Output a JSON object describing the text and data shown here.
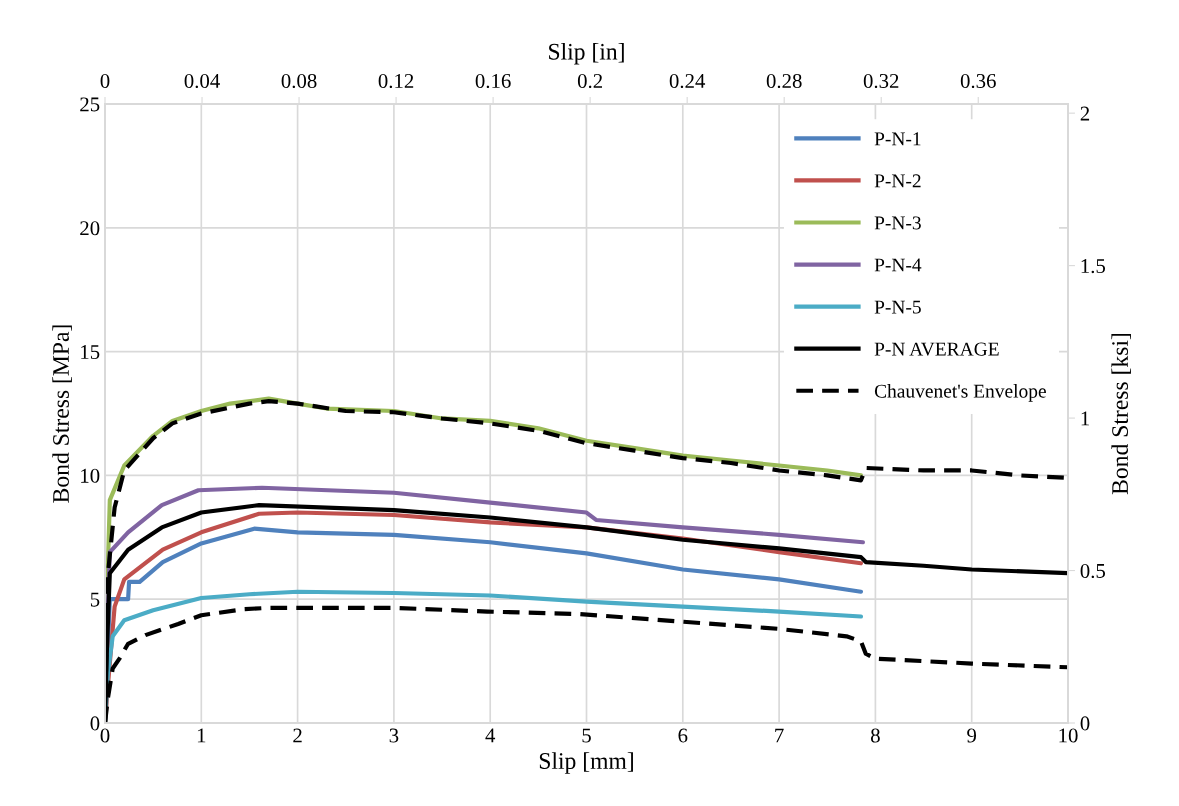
{
  "chart_data": {
    "type": "line",
    "xlabel": "Slip [mm]",
    "ylabel": "Bond Stress [MPa]",
    "y2label": "Bond Stress [ksi]",
    "x2label": "Slip [in]",
    "xlim": [
      0,
      10
    ],
    "xticks": [
      0,
      1,
      2,
      3,
      4,
      5,
      6,
      7,
      8,
      9,
      10
    ],
    "ylim": [
      0,
      25
    ],
    "yticks": [
      0,
      5,
      10,
      15,
      20,
      25
    ],
    "y2lim": [
      0,
      2.03
    ],
    "y2ticks": [
      0,
      0.5,
      1,
      1.5,
      2
    ],
    "x2lim": [
      0,
      0.397
    ],
    "x2ticks": [
      0,
      0.04,
      0.08,
      0.12,
      0.16,
      0.2,
      0.24,
      0.28,
      0.32,
      0.36
    ],
    "grid": true,
    "legend": "top right",
    "line_style": "solid",
    "series": [
      {
        "name": "P-N-1",
        "color": "#4f81bd",
        "x": [
          0,
          0.03,
          0.05,
          0.24,
          0.25,
          0.36,
          0.6,
          1.0,
          1.55,
          2.0,
          3.0,
          4.0,
          5.0,
          6.0,
          7.0,
          7.85
        ],
        "values": [
          0,
          3,
          5.0,
          5.0,
          5.7,
          5.7,
          6.5,
          7.25,
          7.85,
          7.7,
          7.6,
          7.3,
          6.85,
          6.2,
          5.8,
          5.3
        ]
      },
      {
        "name": "P-N-2",
        "color": "#c0504d",
        "x": [
          0,
          0.03,
          0.1,
          0.2,
          0.6,
          1.0,
          1.6,
          2.0,
          3.0,
          4.0,
          5.0,
          6.0,
          7.0,
          7.85
        ],
        "values": [
          0,
          1.5,
          4.7,
          5.8,
          7.0,
          7.7,
          8.45,
          8.5,
          8.4,
          8.1,
          7.9,
          7.45,
          6.9,
          6.45
        ]
      },
      {
        "name": "P-N-3",
        "color": "#9bbb59",
        "x": [
          0,
          0.02,
          0.05,
          0.2,
          0.5,
          0.7,
          1.0,
          1.3,
          1.7,
          2.0,
          2.3,
          3.0,
          3.5,
          4.0,
          4.5,
          5.0,
          5.5,
          6.0,
          6.5,
          7.0,
          7.5,
          7.85
        ],
        "values": [
          0,
          5,
          9,
          10.4,
          11.6,
          12.2,
          12.6,
          12.9,
          13.1,
          12.9,
          12.7,
          12.6,
          12.3,
          12.2,
          11.9,
          11.4,
          11.1,
          10.8,
          10.6,
          10.4,
          10.2,
          10.0
        ]
      },
      {
        "name": "P-N-4",
        "color": "#8064a2",
        "x": [
          0,
          0.02,
          0.05,
          0.24,
          0.59,
          0.97,
          1.63,
          3.0,
          4.0,
          5.0,
          5.1,
          6.0,
          7.0,
          7.87
        ],
        "values": [
          0,
          3.5,
          6.9,
          7.7,
          8.8,
          9.4,
          9.5,
          9.3,
          8.9,
          8.5,
          8.2,
          7.9,
          7.6,
          7.3
        ]
      },
      {
        "name": "P-N-5",
        "color": "#4bacc6",
        "x": [
          0,
          0.03,
          0.08,
          0.2,
          0.5,
          1.0,
          1.5,
          2.0,
          3.0,
          4.0,
          5.0,
          6.0,
          7.0,
          7.85
        ],
        "values": [
          0,
          2,
          3.5,
          4.15,
          4.55,
          5.05,
          5.2,
          5.3,
          5.25,
          5.15,
          4.9,
          4.7,
          4.5,
          4.3
        ]
      },
      {
        "name": "P-N AVERAGE",
        "color": "#000000",
        "x": [
          0,
          0.02,
          0.05,
          0.24,
          0.59,
          1.0,
          1.6,
          3.0,
          4.0,
          5.0,
          6.0,
          7.0,
          7.85,
          7.9,
          8.5,
          9.0,
          10.0
        ],
        "values": [
          0,
          3,
          6.05,
          7.0,
          7.9,
          8.5,
          8.8,
          8.6,
          8.3,
          7.9,
          7.4,
          7.05,
          6.7,
          6.5,
          6.35,
          6.2,
          6.05
        ]
      },
      {
        "name": "Chauvenet's Envelope",
        "color": "#000000",
        "line_style": "dashed",
        "x": [
          0,
          0.03,
          0.1,
          0.2,
          0.5,
          0.7,
          1.0,
          1.5,
          1.7,
          2.0,
          2.5,
          3.0,
          3.5,
          4.0,
          4.5,
          5.0,
          5.5,
          6.0,
          6.5,
          7.0,
          7.5,
          7.85,
          7.9,
          8.5,
          9.0,
          9.5,
          10.0
        ],
        "values": [
          0,
          6,
          8.7,
          10.2,
          11.5,
          12.1,
          12.5,
          12.9,
          13.0,
          12.9,
          12.6,
          12.55,
          12.3,
          12.1,
          11.8,
          11.3,
          11.0,
          10.7,
          10.5,
          10.2,
          10.0,
          9.8,
          10.3,
          10.2,
          10.2,
          10.0,
          9.9
        ]
      },
      {
        "color": "#000000",
        "line_style": "dashed",
        "x": [
          0,
          0.03,
          0.08,
          0.15,
          0.18,
          0.24,
          0.42,
          0.76,
          1.0,
          1.45,
          1.7,
          3.0,
          3.97,
          4.93,
          5.97,
          7.0,
          7.7,
          7.85,
          7.9,
          8.0,
          9.0,
          10.0
        ],
        "values": [
          0,
          1,
          2.2,
          2.6,
          2.8,
          3.2,
          3.55,
          4.0,
          4.35,
          4.6,
          4.65,
          4.65,
          4.5,
          4.4,
          4.1,
          3.8,
          3.5,
          3.3,
          2.8,
          2.6,
          2.4,
          2.25
        ]
      }
    ]
  }
}
